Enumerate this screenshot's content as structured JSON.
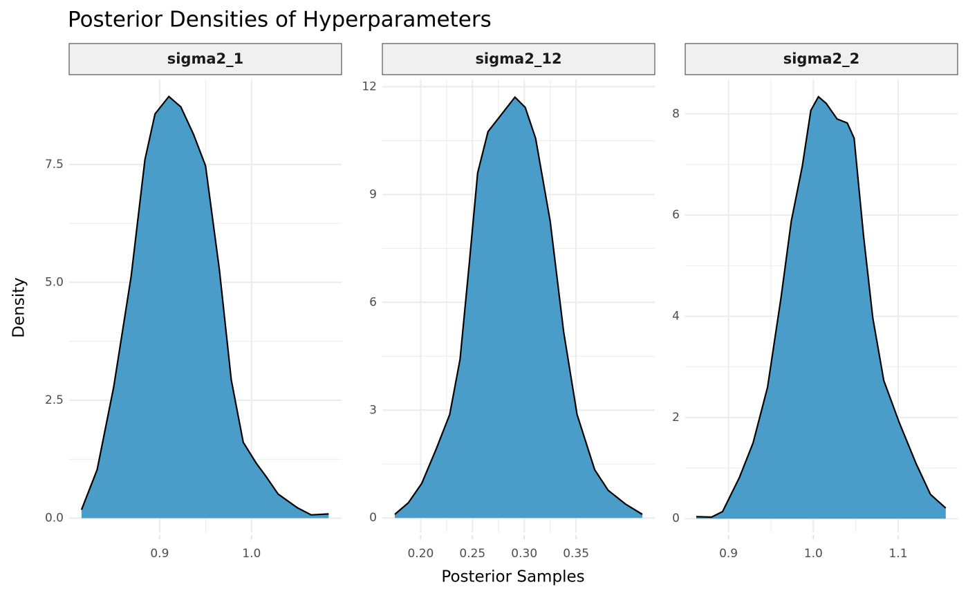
{
  "chart_data": {
    "type": "area",
    "title": "Posterior Densities of Hyperparameters",
    "x_label": "Posterior Samples",
    "y_label": "Density",
    "fill": "#4b9dc9",
    "line_color": "#000000",
    "grid": true,
    "panels": [
      {
        "name": "sigma2_1",
        "x": [
          0.815,
          0.832,
          0.85,
          0.869,
          0.884,
          0.895,
          0.91,
          0.923,
          0.937,
          0.95,
          0.965,
          0.978,
          0.991,
          1.005,
          1.016,
          1.029,
          1.05,
          1.065,
          1.084
        ],
        "values": [
          0.18,
          1.03,
          2.78,
          5.13,
          7.6,
          8.57,
          8.94,
          8.72,
          8.13,
          7.47,
          5.27,
          2.93,
          1.61,
          1.17,
          0.88,
          0.51,
          0.22,
          0.07,
          0.09
        ],
        "xlim": [
          0.8015,
          1.098
        ],
        "ylim": [
          -0.3,
          9.3
        ],
        "xticks": [
          0.9,
          {
            "value": 1.0,
            "label": "1.0"
          }
        ],
        "yticks": [
          {
            "value": 0,
            "label": "0.0"
          },
          2.5,
          {
            "value": 5,
            "label": "5.0"
          },
          7.5
        ]
      },
      {
        "name": "sigma2_12",
        "x": [
          0.175,
          0.188,
          0.201,
          0.215,
          0.228,
          0.238,
          0.247,
          0.255,
          0.265,
          0.278,
          0.291,
          0.301,
          0.311,
          0.325,
          0.338,
          0.351,
          0.368,
          0.381,
          0.398,
          0.414
        ],
        "values": [
          0.1,
          0.42,
          0.96,
          1.92,
          2.88,
          4.42,
          7.1,
          9.6,
          10.75,
          11.23,
          11.71,
          11.42,
          10.56,
          8.26,
          5.18,
          2.88,
          1.34,
          0.77,
          0.38,
          0.1
        ],
        "xlim": [
          0.163,
          0.426
        ],
        "ylim": [
          -0.4,
          12.2
        ],
        "xticks": [
          {
            "value": 0.2,
            "label": "0.20"
          },
          0.25,
          {
            "value": 0.3,
            "label": "0.30"
          },
          0.35
        ],
        "yticks": [
          0,
          3,
          6,
          9,
          12
        ]
      },
      {
        "name": "sigma2_2",
        "x": [
          0.862,
          0.88,
          0.893,
          0.913,
          0.929,
          0.946,
          0.962,
          0.974,
          0.987,
          0.997,
          1.006,
          1.015,
          1.028,
          1.04,
          1.048,
          1.059,
          1.07,
          1.083,
          1.101,
          1.121,
          1.138,
          1.156
        ],
        "values": [
          0.04,
          0.03,
          0.14,
          0.82,
          1.5,
          2.6,
          4.38,
          5.88,
          6.97,
          8.07,
          8.34,
          8.21,
          7.9,
          7.82,
          7.52,
          5.61,
          3.97,
          2.73,
          1.91,
          1.09,
          0.48,
          0.21
        ],
        "xlim": [
          0.849,
          1.17
        ],
        "ylim": [
          -0.27,
          8.68
        ],
        "xticks": [
          0.9,
          {
            "value": 1.0,
            "label": "1.0"
          },
          1.1
        ],
        "yticks": [
          0,
          2,
          4,
          6,
          8
        ]
      }
    ]
  }
}
